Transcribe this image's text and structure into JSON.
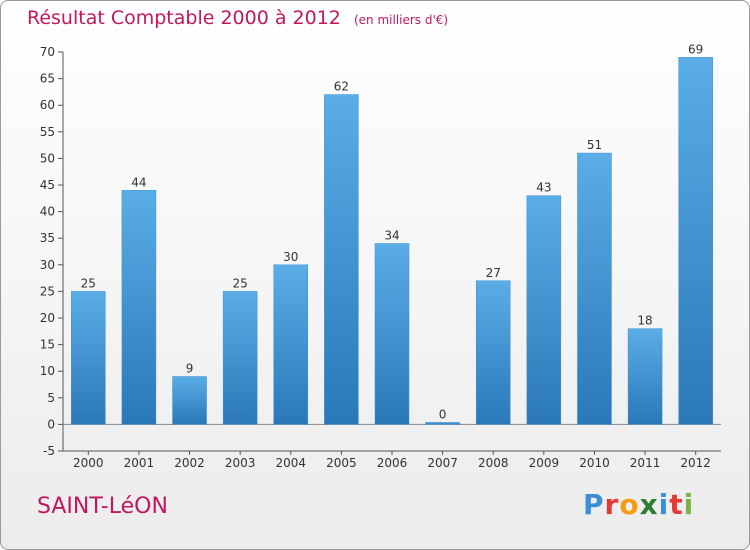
{
  "header": {
    "title": "Résultat Comptable 2000 à 2012",
    "unit": "(en milliers d'€)"
  },
  "footer": {
    "commune": "SAINT-LéON",
    "logo_letters": [
      "P",
      "r",
      "o",
      "x",
      "i",
      "t",
      "i"
    ],
    "logo_colors": [
      "#3a8fd6",
      "#e53935",
      "#f39c12",
      "#2e7d32",
      "#3a8fd6",
      "#e53935",
      "#7cb342"
    ]
  },
  "chart_data": {
    "type": "bar",
    "categories": [
      "2000",
      "2001",
      "2002",
      "2003",
      "2004",
      "2005",
      "2006",
      "2007",
      "2008",
      "2009",
      "2010",
      "2011",
      "2012"
    ],
    "values": [
      25,
      44,
      9,
      25,
      30,
      62,
      34,
      0,
      27,
      43,
      51,
      18,
      69
    ],
    "ylim": [
      -5,
      70
    ],
    "yticks": [
      -5,
      0,
      5,
      10,
      15,
      20,
      25,
      30,
      35,
      40,
      45,
      50,
      55,
      60,
      65,
      70
    ],
    "grid": false,
    "bar_color_top": "#5aade6",
    "bar_color_bottom": "#2a78b8"
  }
}
